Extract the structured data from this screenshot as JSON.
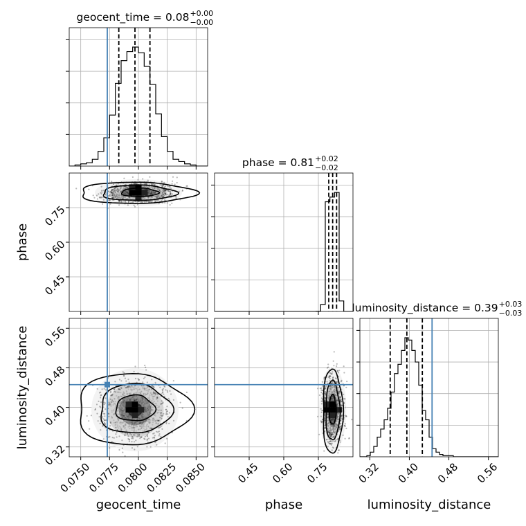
{
  "chart_data": {
    "type": "corner",
    "parameters": [
      "geocent_time",
      "phase",
      "luminosity_distance"
    ],
    "truth_color": "#4682b4",
    "truths": {
      "geocent_time": 0.0773,
      "phase": null,
      "luminosity_distance": 0.446
    },
    "panels": {
      "geocent_time": {
        "title": "geocent_time = 0.08",
        "title_sup": "+0.00",
        "title_sub": "−0.00",
        "xlim": [
          0.074,
          0.086
        ],
        "quantiles": [
          0.0783,
          0.0797,
          0.081
        ],
        "hist_edges": [
          0.074,
          0.0745,
          0.075,
          0.0755,
          0.076,
          0.0765,
          0.077,
          0.0775,
          0.078,
          0.0785,
          0.079,
          0.0795,
          0.08,
          0.0805,
          0.081,
          0.0815,
          0.082,
          0.0825,
          0.083,
          0.0835,
          0.084,
          0.0845,
          0.085,
          0.0855,
          0.086
        ],
        "hist_counts": [
          0,
          0.01,
          0.02,
          0.03,
          0.06,
          0.13,
          0.25,
          0.45,
          0.73,
          0.93,
          1.01,
          1.05,
          1.0,
          0.88,
          0.72,
          0.46,
          0.26,
          0.13,
          0.06,
          0.04,
          0.02,
          0.01,
          0,
          0
        ]
      },
      "phase": {
        "title": "phase = 0.81",
        "title_sup": "+0.02",
        "title_sub": "−0.02",
        "xlim": [
          0.3,
          0.9
        ],
        "quantiles": [
          0.795,
          0.812,
          0.829
        ],
        "hist_edges": [
          0.3,
          0.32,
          0.34,
          0.36,
          0.38,
          0.4,
          0.42,
          0.44,
          0.46,
          0.48,
          0.5,
          0.52,
          0.54,
          0.56,
          0.58,
          0.6,
          0.62,
          0.64,
          0.66,
          0.68,
          0.7,
          0.72,
          0.74,
          0.76,
          0.78,
          0.8,
          0.82,
          0.84,
          0.86,
          0.88,
          0.9
        ],
        "hist_counts": [
          0,
          0,
          0,
          0,
          0,
          0,
          0,
          0,
          0,
          0,
          0,
          0,
          0,
          0,
          0,
          0,
          0,
          0,
          0,
          0,
          0,
          0,
          0.002,
          0.06,
          0.94,
          0.98,
          1.02,
          0.09,
          0,
          0
        ]
      },
      "luminosity_distance": {
        "title": "luminosity_distance = 0.39",
        "title_sup": "+0.03",
        "title_sub": "−0.03",
        "xlim": [
          0.3,
          0.58
        ],
        "quantiles": [
          0.3613,
          0.395,
          0.4263
        ],
        "hist_edges": [
          0.3,
          0.307,
          0.314,
          0.321,
          0.328,
          0.335,
          0.342,
          0.349,
          0.356,
          0.363,
          0.37,
          0.377,
          0.384,
          0.391,
          0.398,
          0.405,
          0.412,
          0.419,
          0.426,
          0.433,
          0.44,
          0.447,
          0.454,
          0.461,
          0.468,
          0.475,
          0.482,
          0.489,
          0.496,
          0.503,
          0.51,
          0.517,
          0.524,
          0.531,
          0.538,
          0.545,
          0.552,
          0.559,
          0.566,
          0.573,
          0.58
        ],
        "hist_counts": [
          0,
          0,
          0.01,
          0.04,
          0.09,
          0.17,
          0.24,
          0.32,
          0.42,
          0.56,
          0.72,
          0.8,
          0.92,
          1.03,
          1.01,
          0.92,
          0.82,
          0.62,
          0.4,
          0.32,
          0.17,
          0.07,
          0.04,
          0.02,
          0.01,
          0.01,
          0.01,
          0,
          0,
          0,
          0,
          0,
          0,
          0,
          0,
          0,
          0,
          0,
          0,
          0
        ]
      }
    },
    "axes": {
      "geocent_time": {
        "ticks": [
          0.075,
          0.0775,
          0.08,
          0.0825,
          0.085
        ],
        "tick_labels": [
          "0.0750",
          "0.0775",
          "0.0800",
          "0.0825",
          "0.0850"
        ],
        "lim": [
          0.074,
          0.086
        ]
      },
      "phase": {
        "ticks": [
          0.45,
          0.6,
          0.75
        ],
        "tick_labels": [
          "0.45",
          "0.60",
          "0.75"
        ],
        "lim": [
          0.3,
          0.9
        ],
        "lim_y": [
          0.3,
          0.9
        ]
      },
      "luminosity_distance": {
        "ticks": [
          0.32,
          0.4,
          0.48,
          0.56
        ],
        "tick_labels": [
          "0.32",
          "0.40",
          "0.48",
          "0.56"
        ],
        "lim": [
          0.3,
          0.58
        ]
      }
    },
    "hist_y_ticks": 4,
    "pairs": {
      "phase_vs_geocent_time": {
        "x": "geocent_time",
        "y": "phase",
        "center": [
          0.08,
          0.815
        ],
        "sd": [
          0.00135,
          0.021
        ],
        "rho": 0.15,
        "contours": [
          {
            "level": 0.5,
            "center": [
              0.0801,
              0.816
            ],
            "r": [
              0.0016,
              0.018
            ]
          },
          {
            "level": 1.0,
            "center": [
              0.08,
              0.814
            ],
            "r": [
              0.0032,
              0.033
            ]
          },
          {
            "level": 1.5,
            "center": [
              0.0798,
              0.814
            ],
            "r": [
              0.005,
              0.046
            ]
          }
        ]
      },
      "luminosity_distance_vs_geocent_time": {
        "x": "geocent_time",
        "y": "luminosity_distance",
        "center": [
          0.0797,
          0.395
        ],
        "sd": [
          0.00135,
          0.03
        ],
        "rho": 0.05,
        "contours": [
          {
            "level": 0.5,
            "center": [
              0.0797,
              0.398
            ],
            "r": [
              0.0017,
              0.026
            ]
          },
          {
            "level": 1.0,
            "center": [
              0.0797,
              0.397
            ],
            "r": [
              0.0031,
              0.05
            ]
          },
          {
            "level": 1.5,
            "center": [
              0.0795,
              0.396
            ],
            "r": [
              0.0049,
              0.072
            ]
          }
        ]
      },
      "luminosity_distance_vs_phase": {
        "x": "phase",
        "y": "luminosity_distance",
        "center": [
          0.812,
          0.395
        ],
        "sd": [
          0.021,
          0.031
        ],
        "rho": 0.0,
        "contours": [
          {
            "level": 0.5,
            "center": [
              0.812,
              0.395
            ],
            "r": [
              0.015,
              0.03
            ]
          },
          {
            "level": 1.0,
            "center": [
              0.812,
              0.393
            ],
            "r": [
              0.03,
              0.06
            ]
          },
          {
            "level": 1.5,
            "center": [
              0.812,
              0.392
            ],
            "r": [
              0.043,
              0.085
            ]
          }
        ]
      }
    },
    "xlabels": [
      "geocent_time",
      "phase",
      "luminosity_distance"
    ],
    "ylabels": [
      "phase",
      "luminosity_distance"
    ]
  }
}
